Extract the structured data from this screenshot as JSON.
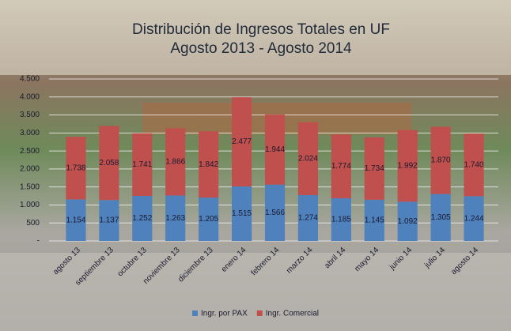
{
  "chart_data": {
    "type": "stacked_bar",
    "title": "Distribución de Ingresos Totales  en UF",
    "subtitle": "Agosto 2013 - Agosto 2014",
    "categories": [
      "agosto 13",
      "septiembre 13",
      "octubre 13",
      "noviembre 13",
      "diciembre 13",
      "enero 14",
      "febrero 14",
      "marzo 14",
      "abril 14",
      "mayo 14",
      "junio 14",
      "julio 14",
      "agosto 14"
    ],
    "series": [
      {
        "name": "Ingr. por PAX",
        "color": "#4f81bd",
        "values": [
          1154,
          1137,
          1252,
          1263,
          1205,
          1515,
          1566,
          1274,
          1185,
          1145,
          1092,
          1305,
          1244
        ],
        "value_labels": [
          "1.154",
          "1.137",
          "1.252",
          "1.263",
          "1.205",
          "1.515",
          "1.566",
          "1.274",
          "1.185",
          "1.145",
          "1.092",
          "1.305",
          "1.244"
        ]
      },
      {
        "name": "Ingr. Comercial",
        "color": "#c0504d",
        "values": [
          1738,
          2058,
          1741,
          1866,
          1842,
          2477,
          1944,
          2024,
          1774,
          1734,
          1992,
          1870,
          1740
        ],
        "value_labels": [
          "1.738",
          "2.058",
          "1.741",
          "1.866",
          "1.842",
          "2.477",
          "1.944",
          "2.024",
          "1.774",
          "1.734",
          "1.992",
          "1.870",
          "1.740"
        ]
      }
    ],
    "ylim": [
      0,
      4500
    ],
    "yticks": [
      {
        "value": 0,
        "label": "-"
      },
      500,
      {
        "value": 1000,
        "label": "1.000"
      },
      {
        "value": 1500,
        "label": "1.500"
      },
      {
        "value": 2000,
        "label": "2.000"
      },
      {
        "value": 2500,
        "label": "2.500"
      },
      {
        "value": 3000,
        "label": "3.000"
      },
      {
        "value": 3500,
        "label": "3.500"
      },
      {
        "value": 4000,
        "label": "4.000"
      },
      {
        "value": 4500,
        "label": "4.500"
      }
    ],
    "grid": true,
    "legend": "bottom"
  }
}
